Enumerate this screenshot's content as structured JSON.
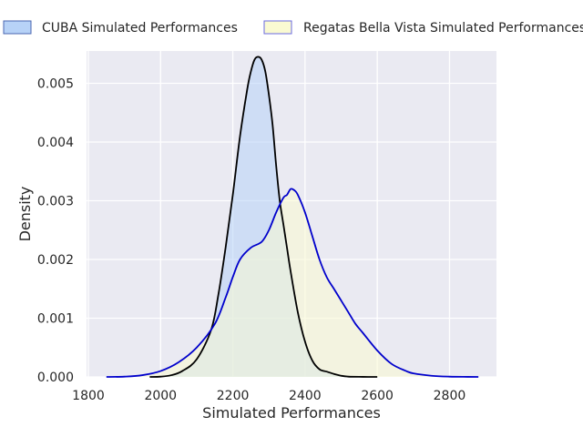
{
  "chart_data": {
    "type": "area",
    "title": "",
    "xlabel": "Simulated Performances",
    "ylabel": "Density",
    "xlim": [
      1795,
      2930
    ],
    "ylim": [
      0,
      0.00555
    ],
    "xticks": [
      1800,
      2000,
      2200,
      2400,
      2600,
      2800
    ],
    "xtick_labels": [
      "1800",
      "2000",
      "2200",
      "2400",
      "2600",
      "2800"
    ],
    "yticks": [
      0,
      0.001,
      0.002,
      0.003,
      0.004,
      0.005
    ],
    "ytick_labels": [
      "0.000",
      "0.001",
      "0.002",
      "0.003",
      "0.004",
      "0.005"
    ],
    "grid": true,
    "legend_position": "top",
    "series": [
      {
        "name": "CUBA Simulated Performances",
        "line_color": "#000000",
        "fill_color": "#b7d2f7",
        "x": [
          1970,
          2000,
          2030,
          2060,
          2100,
          2140,
          2160,
          2180,
          2200,
          2220,
          2240,
          2250,
          2260,
          2270,
          2280,
          2290,
          2300,
          2310,
          2320,
          2330,
          2340,
          2350,
          2360,
          2380,
          2400,
          2420,
          2440,
          2460,
          2480,
          2500,
          2520,
          2560,
          2600
        ],
        "y": [
          0,
          5e-06,
          3e-05,
          0.0001,
          0.0003,
          0.0008,
          0.0014,
          0.0022,
          0.0031,
          0.0041,
          0.0049,
          0.0052,
          0.0054,
          0.00545,
          0.0054,
          0.0052,
          0.0048,
          0.0043,
          0.0036,
          0.003,
          0.0026,
          0.0022,
          0.0018,
          0.0011,
          0.0006,
          0.00028,
          0.00013,
          9e-05,
          5e-05,
          2e-05,
          5e-06,
          1e-06,
          0
        ]
      },
      {
        "name": "Regatas Bella Vista Simulated Performances",
        "line_color": "#0000cc",
        "fill_color": "#fafad2",
        "x": [
          1850,
          1900,
          1950,
          2000,
          2050,
          2100,
          2150,
          2180,
          2200,
          2220,
          2250,
          2280,
          2300,
          2320,
          2340,
          2350,
          2360,
          2370,
          2380,
          2400,
          2420,
          2440,
          2460,
          2480,
          2500,
          2520,
          2540,
          2560,
          2600,
          2640,
          2680,
          2700,
          2750,
          2800,
          2850,
          2880
        ],
        "y": [
          0,
          5e-06,
          3e-05,
          0.0001,
          0.00025,
          0.0005,
          0.0009,
          0.00135,
          0.0017,
          0.002,
          0.0022,
          0.0023,
          0.0025,
          0.0028,
          0.00305,
          0.0031,
          0.0032,
          0.00318,
          0.0031,
          0.0028,
          0.0024,
          0.002,
          0.0017,
          0.0015,
          0.0013,
          0.0011,
          0.0009,
          0.00075,
          0.00045,
          0.00022,
          0.0001,
          6e-05,
          2e-05,
          5e-06,
          1e-06,
          0
        ]
      }
    ]
  }
}
